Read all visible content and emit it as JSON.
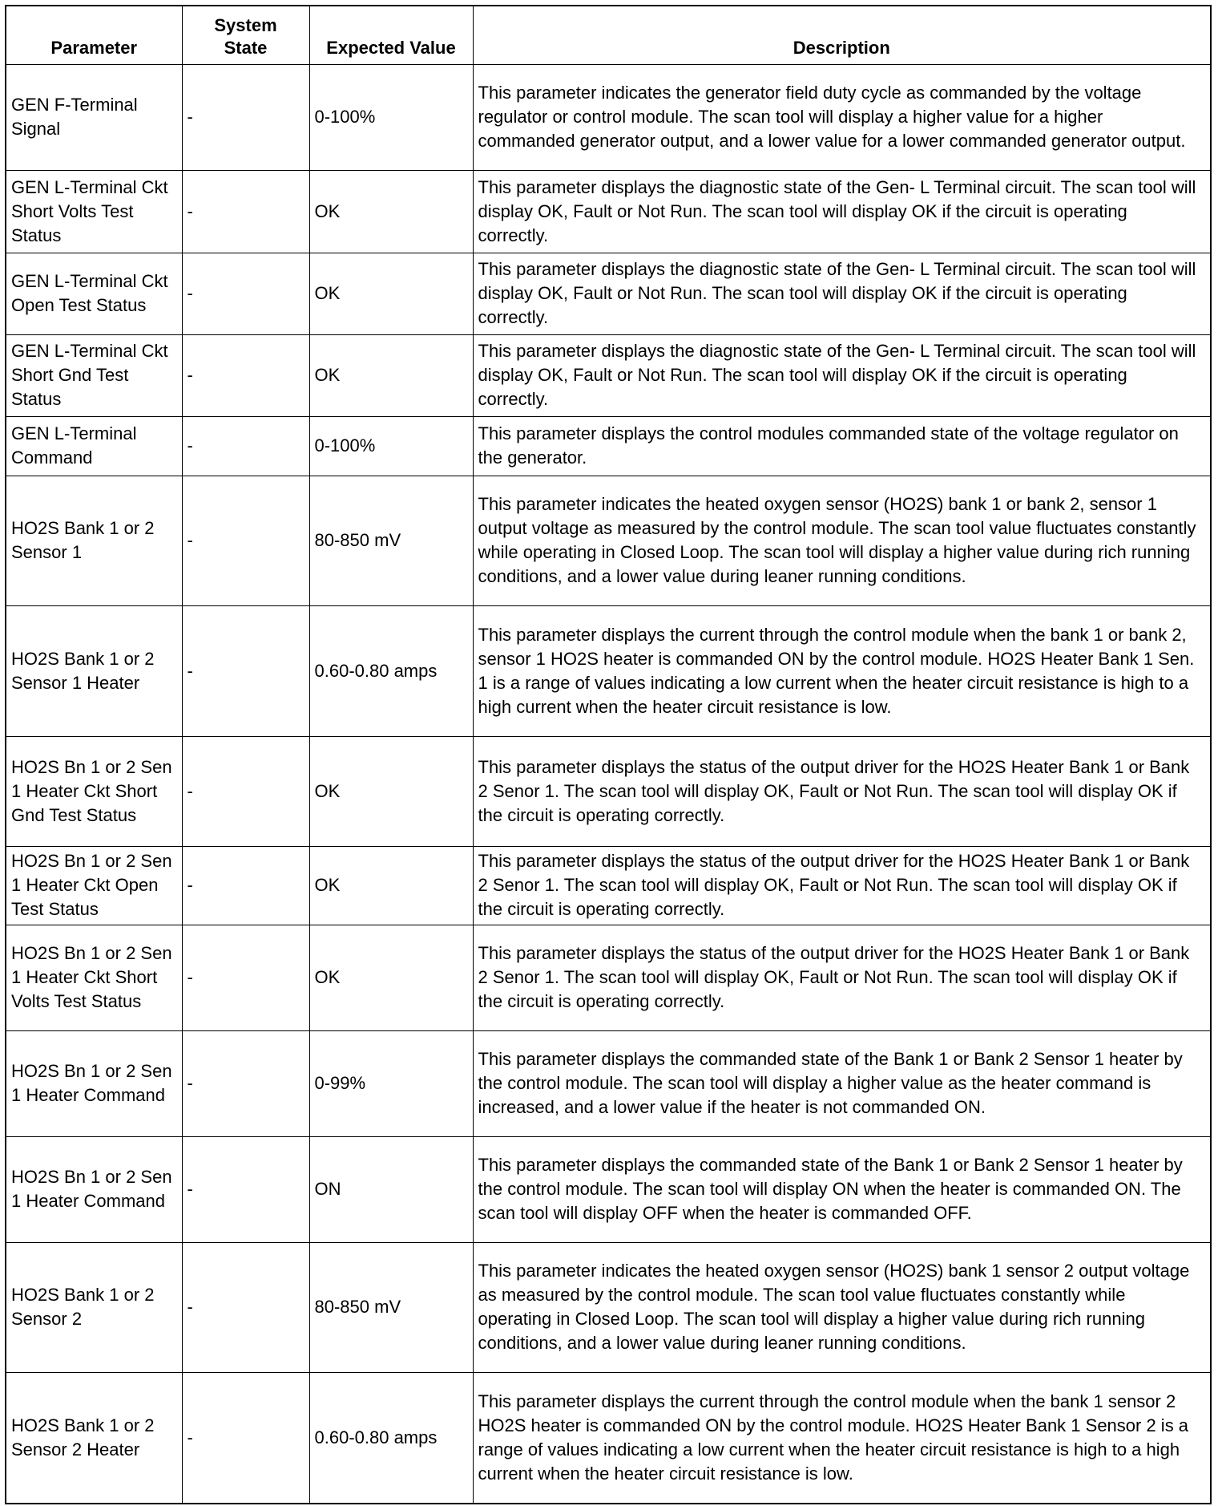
{
  "table": {
    "headers": [
      "Parameter",
      "System State",
      "Expected Value",
      "Description"
    ],
    "rows": [
      {
        "parameter": "GEN F-Terminal Signal",
        "state": "-",
        "expected": "0-100%",
        "description": "This parameter indicates the generator field duty cycle as commanded by the voltage regulator or control module. The scan tool will display a higher value for a higher commanded generator output, and a lower value for a lower commanded generator output."
      },
      {
        "parameter": "GEN L-Terminal Ckt Short Volts Test Status",
        "state": "-",
        "expected": "OK",
        "description": "This parameter displays the diagnostic state of the Gen- L Terminal circuit. The scan tool will display OK, Fault or Not Run. The scan tool will display OK if the circuit is operating correctly."
      },
      {
        "parameter": "GEN L-Terminal Ckt Open Test Status",
        "state": "-",
        "expected": "OK",
        "description": "This parameter displays the diagnostic state of the Gen- L Terminal circuit. The scan tool will display OK, Fault or Not Run. The scan tool will display OK if the circuit is operating correctly."
      },
      {
        "parameter": "GEN L-Terminal Ckt Short Gnd Test Status",
        "state": "-",
        "expected": "OK",
        "description": "This parameter displays the diagnostic state of the Gen- L Terminal circuit. The scan tool will display OK, Fault or Not Run. The scan tool will display OK if the circuit is operating correctly."
      },
      {
        "parameter": "GEN L-Terminal Command",
        "state": "-",
        "expected": "0-100%",
        "description": "This parameter displays the control modules commanded state of the voltage regulator on the generator."
      },
      {
        "parameter": "HO2S Bank 1 or 2 Sensor 1",
        "state": "-",
        "expected": "80-850 mV",
        "description": "This parameter indicates the heated oxygen sensor (HO2S) bank 1 or bank 2, sensor 1 output voltage as measured by the control module. The scan tool value fluctuates constantly while operating in Closed Loop. The scan tool will display a higher value during rich running conditions, and a lower value during leaner running conditions."
      },
      {
        "parameter": "HO2S Bank 1 or 2 Sensor 1 Heater",
        "state": "-",
        "expected": "0.60-0.80 amps",
        "description": "This parameter displays the current through the control module when the bank 1 or bank 2, sensor 1 HO2S heater is commanded ON by the control module. HO2S Heater Bank 1 Sen. 1 is a range of values indicating a low current when the heater circuit resistance is high to a high current when the heater circuit resistance is low."
      },
      {
        "parameter": "HO2S Bn 1 or 2 Sen 1 Heater Ckt Short Gnd Test Status",
        "state": "-",
        "expected": "OK",
        "description": "This parameter displays the status of the output driver for the HO2S Heater Bank 1 or Bank 2 Senor 1. The scan tool will display OK, Fault or Not Run. The scan tool will display OK if the circuit is operating correctly."
      },
      {
        "parameter": "HO2S Bn 1 or 2 Sen 1 Heater Ckt Open Test Status",
        "state": "-",
        "expected": "OK",
        "description": "This parameter displays the status of the output driver for the HO2S Heater Bank 1 or Bank 2 Senor 1. The scan tool will display OK, Fault or Not Run. The scan tool will display OK if the circuit is operating correctly."
      },
      {
        "parameter": "HO2S Bn 1 or 2 Sen 1 Heater Ckt Short Volts Test Status",
        "state": "-",
        "expected": "OK",
        "description": "This parameter displays the status of the output driver for the HO2S Heater Bank 1 or Bank 2 Senor 1. The scan tool will display OK, Fault or Not Run. The scan tool will display OK if the circuit is operating correctly."
      },
      {
        "parameter": "HO2S Bn 1 or 2 Sen 1 Heater Command",
        "state": "-",
        "expected": "0-99%",
        "description": "This parameter displays the commanded state of the Bank 1 or Bank 2 Sensor 1 heater by the control module. The scan tool will display a higher value as the heater command is increased, and a lower value if the heater is not commanded ON."
      },
      {
        "parameter": "HO2S Bn 1 or 2 Sen 1 Heater Command",
        "state": "-",
        "expected": "ON",
        "description": "This parameter displays the commanded state of the Bank 1 or Bank 2 Sensor 1 heater by the control module. The scan tool will display ON when the heater is commanded ON. The scan tool will display OFF when the heater is commanded OFF."
      },
      {
        "parameter": "HO2S Bank 1 or 2 Sensor 2",
        "state": "-",
        "expected": "80-850 mV",
        "description": "This parameter indicates the heated oxygen sensor (HO2S) bank 1 sensor 2 output voltage as measured by the control module. The scan tool value fluctuates constantly while operating in Closed Loop. The scan tool will display a higher value during rich running conditions, and a lower value during leaner running conditions."
      },
      {
        "parameter": "HO2S Bank 1 or 2 Sensor 2 Heater",
        "state": "-",
        "expected": "0.60-0.80 amps",
        "description": "This parameter displays the current through the control module when the bank 1 sensor 2 HO2S heater is commanded ON by the control module. HO2S Heater Bank 1 Sensor 2 is a range of values indicating a low current when the heater circuit resistance is high to a high current when the heater circuit resistance is low."
      }
    ]
  }
}
